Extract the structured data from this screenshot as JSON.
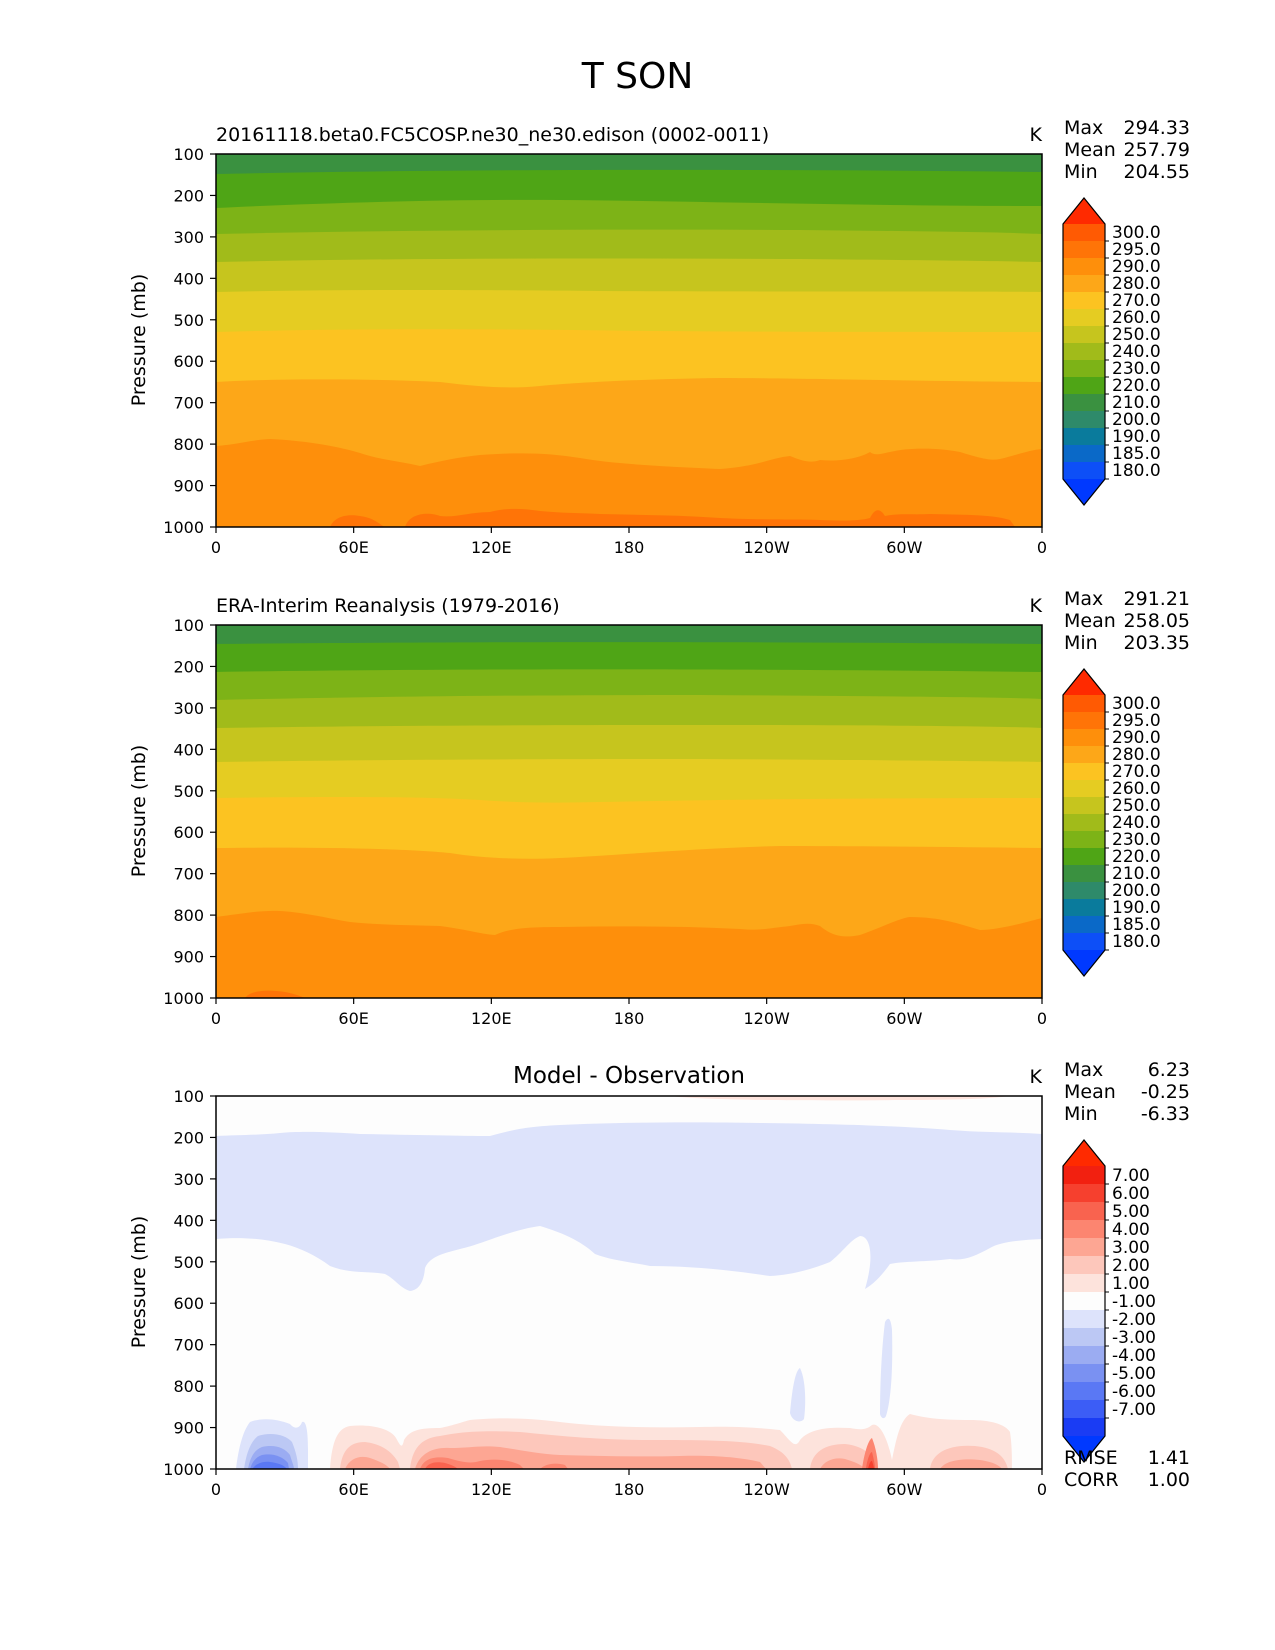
{
  "suptitle": "T SON",
  "colors": {
    "temp_levels": [
      {
        "label": "180.0",
        "color": "#0d4ff7"
      },
      {
        "label": "185.0",
        "color": "#0a69c8"
      },
      {
        "label": "190.0",
        "color": "#0a7b9c"
      },
      {
        "label": "200.0",
        "color": "#2e8a6a"
      },
      {
        "label": "210.0",
        "color": "#3a9140"
      },
      {
        "label": "220.0",
        "color": "#4fa516"
      },
      {
        "label": "230.0",
        "color": "#7db317"
      },
      {
        "label": "240.0",
        "color": "#a1bb1a"
      },
      {
        "label": "250.0",
        "color": "#c6c51e"
      },
      {
        "label": "260.0",
        "color": "#e5cc22"
      },
      {
        "label": "270.0",
        "color": "#fcc321"
      },
      {
        "label": "280.0",
        "color": "#fda718"
      },
      {
        "label": "290.0",
        "color": "#fe8f0b"
      },
      {
        "label": "295.0",
        "color": "#ff7407"
      },
      {
        "label": "300.0",
        "color": "#ff5a03"
      }
    ],
    "temp_over": "#ff2a00",
    "temp_under": "#0039ff",
    "diff_levels": [
      {
        "label": "-7.00",
        "color": "#1a3cf4"
      },
      {
        "label": "-6.00",
        "color": "#3c5df6"
      },
      {
        "label": "-5.00",
        "color": "#5a78f4"
      },
      {
        "label": "-4.00",
        "color": "#7a91f2"
      },
      {
        "label": "-3.00",
        "color": "#9bacf2"
      },
      {
        "label": "-2.00",
        "color": "#bcc8f4"
      },
      {
        "label": "-1.00",
        "color": "#dde3fb"
      },
      {
        "label": "",
        "color": "#fdfdfd"
      },
      {
        "label": "1.00",
        "color": "#fde3dc"
      },
      {
        "label": "2.00",
        "color": "#fdc7bb"
      },
      {
        "label": "3.00",
        "color": "#fda693"
      },
      {
        "label": "4.00",
        "color": "#fc8570"
      },
      {
        "label": "5.00",
        "color": "#f9634f"
      },
      {
        "label": "6.00",
        "color": "#f6402e"
      },
      {
        "label": "7.00",
        "color": "#f22010"
      }
    ],
    "diff_over": "#ff2a00",
    "diff_under": "#0039ff"
  },
  "axes": {
    "ylabel": "Pressure (mb)",
    "yticks": [
      "100",
      "200",
      "300",
      "400",
      "500",
      "600",
      "700",
      "800",
      "900",
      "1000"
    ],
    "xticks": [
      "0",
      "60E",
      "120E",
      "180",
      "120W",
      "60W",
      "0"
    ]
  },
  "panels": [
    {
      "title_left": "20161118.beta0.FC5COSP.ne30_ne30.edison (0002-0011)",
      "title_center": "",
      "units": "K",
      "stats": [
        {
          "label": "Max",
          "value": "294.33"
        },
        {
          "label": "Mean",
          "value": "257.79"
        },
        {
          "label": "Min",
          "value": "204.55"
        }
      ]
    },
    {
      "title_left": "ERA-Interim Reanalysis (1979-2016)",
      "title_center": "",
      "units": "K",
      "stats": [
        {
          "label": "Max",
          "value": "291.21"
        },
        {
          "label": "Mean",
          "value": "258.05"
        },
        {
          "label": "Min",
          "value": "203.35"
        }
      ]
    },
    {
      "title_left": "",
      "title_center": "Model - Observation",
      "units": "K",
      "stats": [
        {
          "label": "Max",
          "value": "6.23"
        },
        {
          "label": "Mean",
          "value": "-0.25"
        },
        {
          "label": "Min",
          "value": "-6.33"
        }
      ],
      "extra_stats": [
        {
          "label": "RMSE",
          "value": "1.41"
        },
        {
          "label": "CORR",
          "value": "1.00"
        }
      ]
    }
  ],
  "chart_data": [
    {
      "type": "heatmap",
      "title": "20161118.beta0.FC5COSP.ne30_ne30.edison (0002-0011)",
      "units": "K",
      "x": "longitude 0-360",
      "ylabel": "Pressure (mb)",
      "ylim": [
        1000,
        100
      ],
      "xticks": [
        "0",
        "60E",
        "120E",
        "180",
        "120W",
        "60W",
        "0"
      ],
      "contour_boundaries_mb": [
        {
          "upper_value": 210,
          "p": [
            140,
            145,
            140,
            140
          ]
        },
        {
          "upper_value": 220,
          "p": [
            230,
            225,
            230,
            225
          ]
        },
        {
          "upper_value": 230,
          "p": [
            300,
            295,
            300,
            300
          ]
        },
        {
          "upper_value": 240,
          "p": [
            370,
            365,
            370,
            370
          ]
        },
        {
          "upper_value": 250,
          "p": [
            445,
            440,
            445,
            445
          ]
        },
        {
          "upper_value": 260,
          "p": [
            535,
            530,
            535,
            535
          ]
        },
        {
          "upper_value": 270,
          "p": [
            655,
            660,
            655,
            655
          ]
        },
        {
          "upper_value": 280,
          "p": [
            800,
            845,
            840,
            800
          ]
        },
        {
          "upper_value": 290,
          "p": [
            985,
            985,
            990,
            990
          ]
        }
      ],
      "max": 294.33,
      "mean": 257.79,
      "min": 204.55
    },
    {
      "type": "heatmap",
      "title": "ERA-Interim Reanalysis (1979-2016)",
      "units": "K",
      "x": "longitude 0-360",
      "ylabel": "Pressure (mb)",
      "ylim": [
        1000,
        100
      ],
      "xticks": [
        "0",
        "60E",
        "120E",
        "180",
        "120W",
        "60W",
        "0"
      ],
      "contour_boundaries_mb": [
        {
          "upper_value": 210,
          "p": [
            145,
            145,
            145,
            145
          ]
        },
        {
          "upper_value": 220,
          "p": [
            215,
            215,
            215,
            215
          ]
        },
        {
          "upper_value": 230,
          "p": [
            280,
            280,
            280,
            280
          ]
        },
        {
          "upper_value": 240,
          "p": [
            355,
            350,
            355,
            355
          ]
        },
        {
          "upper_value": 250,
          "p": [
            430,
            425,
            430,
            430
          ]
        },
        {
          "upper_value": 260,
          "p": [
            520,
            515,
            520,
            520
          ]
        },
        {
          "upper_value": 270,
          "p": [
            640,
            660,
            645,
            640
          ]
        },
        {
          "upper_value": 280,
          "p": [
            805,
            850,
            835,
            805
          ]
        },
        {
          "upper_value": 290,
          "p": [
            995,
            1000,
            1000,
            1000
          ]
        }
      ],
      "max": 291.21,
      "mean": 258.05,
      "min": 203.35
    },
    {
      "type": "heatmap",
      "title": "Model - Observation",
      "units": "K",
      "x": "longitude 0-360",
      "ylabel": "Pressure (mb)",
      "ylim": [
        1000,
        100
      ],
      "xticks": [
        "0",
        "60E",
        "120E",
        "180",
        "120W",
        "60W",
        "0"
      ],
      "negative_region_minus1_to_0": {
        "top_mb": 200,
        "bottom_mb": [
          455,
          470,
          560,
          450,
          420,
          520,
          535,
          460
        ]
      },
      "positive_near_surface": "1-5 K between ~60E and ~60W below ~870 mb",
      "negative_near_surface": "-1 to -7 K near 15E-40E below ~880 mb",
      "max": 6.23,
      "mean": -0.25,
      "min": -6.33,
      "rmse": 1.41,
      "corr": 1.0
    }
  ]
}
